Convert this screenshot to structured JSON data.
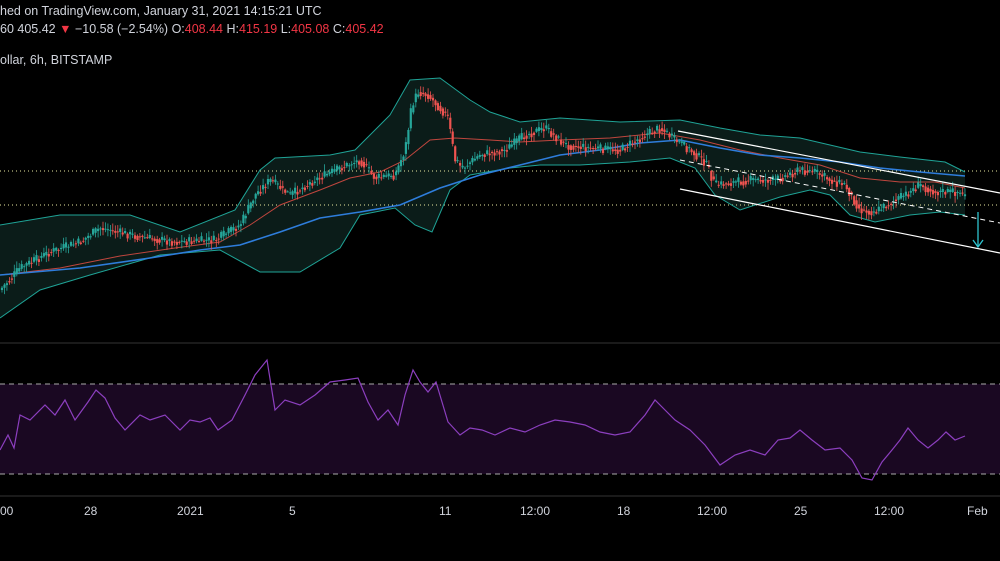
{
  "header": {
    "line1": "hed on TradingView.com, January 31, 2021 14:15:21 UTC",
    "ticker_fragment": "60",
    "price": "405.42",
    "down_arrow": "▼",
    "change": "−10.58 (−2.54%)",
    "o_label": "O:",
    "o_value": "408.44",
    "h_label": "H:",
    "h_value": "415.19",
    "l_label": "L:",
    "l_value": "405.08",
    "c_label": "C:",
    "c_value": "405.42",
    "symbol_line": "ollar, 6h, BITSTAMP"
  },
  "colors": {
    "background": "#000000",
    "up_candle": "#26a69a",
    "down_candle": "#ef5350",
    "bollinger_band": "#1fa396",
    "bollinger_fill": "#0b1c19",
    "basis_line": "#c0463e",
    "ma_line": "#2e7ddb",
    "channel_line": "#ffffff",
    "target_arrow": "#2ec4cf",
    "rsi_line": "#8c3fbf",
    "rsi_band_fill": "#1a0822",
    "separator": "#333333",
    "dotted_level": "#e8e8a0"
  },
  "chart_data": [
    {
      "type": "candlestick",
      "title": "",
      "xlabel": "",
      "ylabel": "",
      "x_tick_labels": [
        "00",
        "28",
        "2021",
        "5",
        "11",
        "12:00",
        "18",
        "12:00",
        "25",
        "12:00",
        "Feb"
      ],
      "x_tick_positions_bar_index": [
        2,
        37,
        77,
        117,
        178,
        214,
        249,
        285,
        320,
        356,
        391
      ],
      "description_of_series": "6h candles with Bollinger bands, basis and moving average",
      "bar_count": 392,
      "last_close": 405.42,
      "indicators": [
        "Bollinger Bands",
        "Moving Average"
      ],
      "horizontal_levels": [
        "upper dotted level",
        "lower dotted level"
      ],
      "descending_channel": true
    },
    {
      "type": "line",
      "title": "",
      "name": "",
      "upper_band_level": 70,
      "lower_band_level": 30,
      "ylim": [
        20,
        85
      ]
    }
  ]
}
